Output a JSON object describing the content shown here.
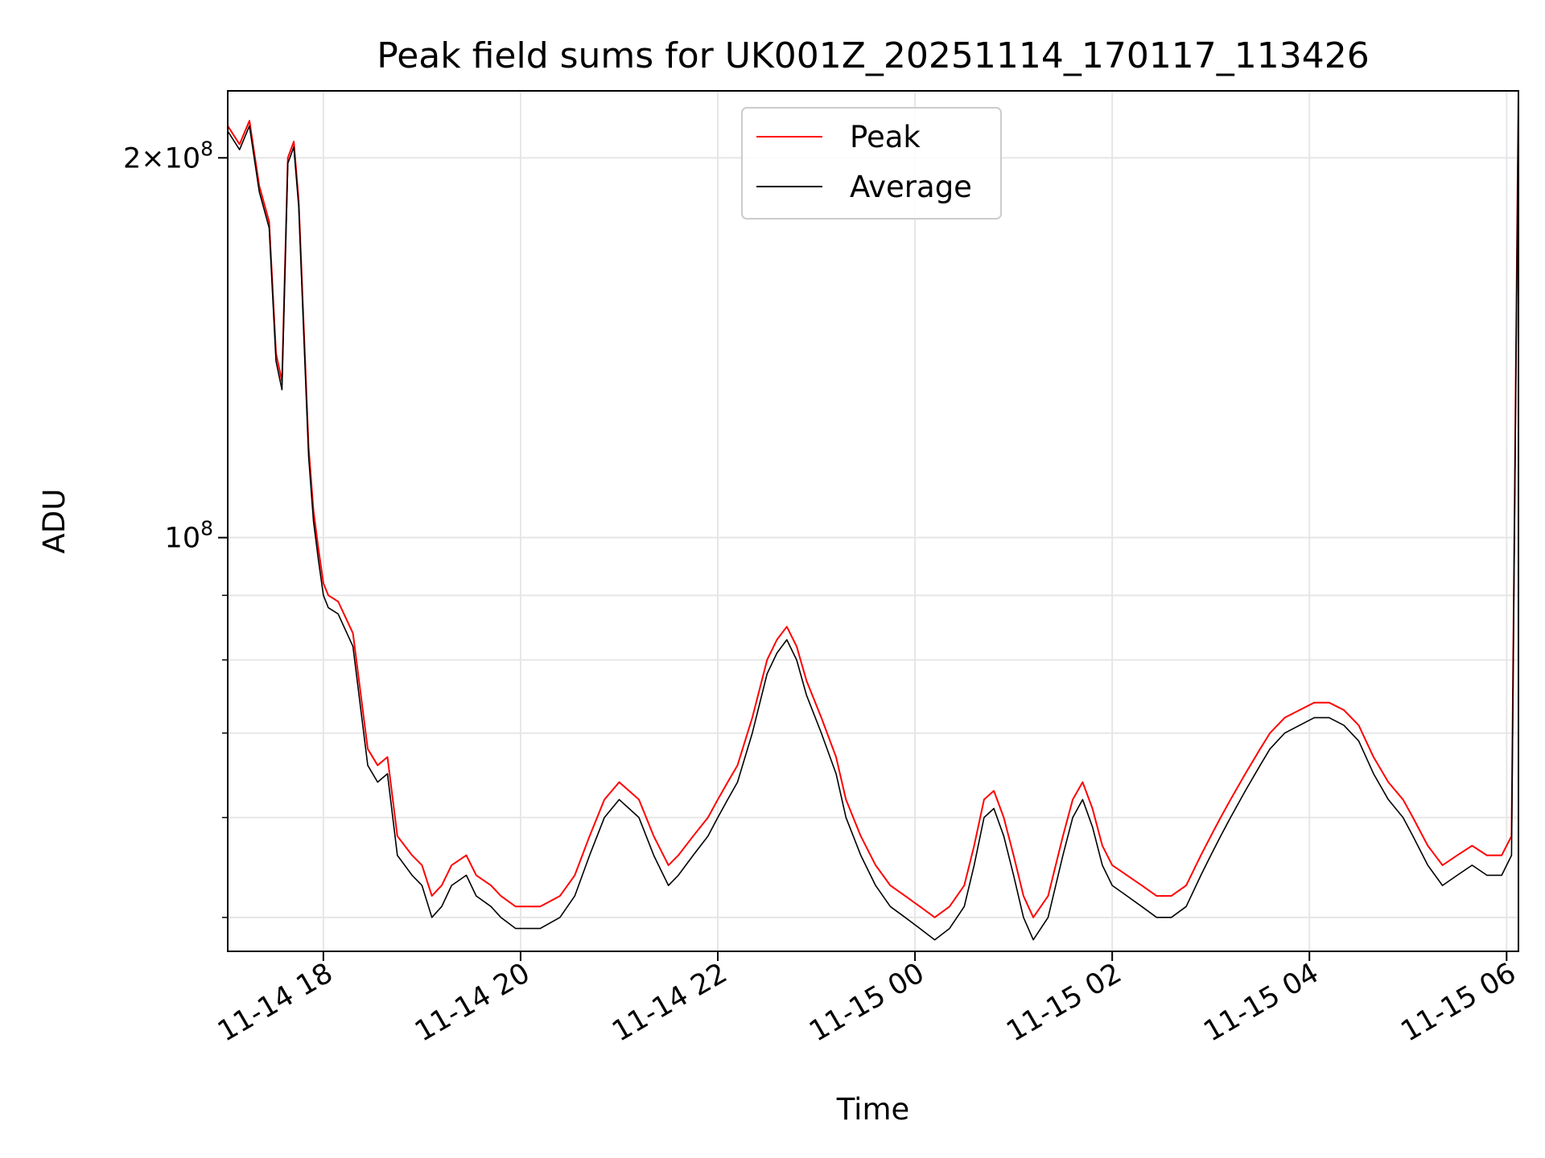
{
  "chart_data": {
    "type": "line",
    "title": "Peak field sums for UK001Z_20251114_170117_113426",
    "xlabel": "Time",
    "ylabel": "ADU",
    "yscale": "log",
    "ylim": [
      47000000,
      226000000
    ],
    "xlim_hours": [
      -0.97,
      12.12
    ],
    "grid": true,
    "legend_position": "top-center",
    "x_tick_labels": [
      "11-14 18",
      "11-14 20",
      "11-14 22",
      "11-15 00",
      "11-15 02",
      "11-15 04",
      "11-15 06"
    ],
    "x_tick_hours": [
      0,
      2,
      4,
      6,
      8,
      10,
      12
    ],
    "y_major_ticks": [
      {
        "value": 100000000,
        "base": "10",
        "exp": "8",
        "coef": ""
      },
      {
        "value": 200000000,
        "base": "10",
        "exp": "8",
        "coef": "2×"
      }
    ],
    "y_minor_ticks": [
      50000000,
      60000000,
      70000000,
      80000000,
      90000000
    ],
    "x_unit_note": "hours since 2025-11-14 18:00",
    "series": [
      {
        "name": "Peak",
        "color": "#ff0000",
        "points": [
          [
            -0.97,
            212
          ],
          [
            -0.85,
            205
          ],
          [
            -0.75,
            214
          ],
          [
            -0.65,
            190
          ],
          [
            -0.55,
            178
          ],
          [
            -0.48,
            140
          ],
          [
            -0.42,
            133
          ],
          [
            -0.36,
            200
          ],
          [
            -0.3,
            206
          ],
          [
            -0.25,
            185
          ],
          [
            -0.15,
            118
          ],
          [
            -0.1,
            105
          ],
          [
            -0.05,
            98
          ],
          [
            0.0,
            92
          ],
          [
            0.05,
            90
          ],
          [
            0.15,
            89
          ],
          [
            0.3,
            84
          ],
          [
            0.45,
            68
          ],
          [
            0.55,
            66
          ],
          [
            0.65,
            67
          ],
          [
            0.75,
            58
          ],
          [
            0.9,
            56
          ],
          [
            1.0,
            55
          ],
          [
            1.1,
            52
          ],
          [
            1.2,
            53
          ],
          [
            1.3,
            55
          ],
          [
            1.45,
            56
          ],
          [
            1.55,
            54
          ],
          [
            1.7,
            53
          ],
          [
            1.8,
            52
          ],
          [
            1.95,
            51
          ],
          [
            2.05,
            51
          ],
          [
            2.2,
            51
          ],
          [
            2.4,
            52
          ],
          [
            2.55,
            54
          ],
          [
            2.7,
            58
          ],
          [
            2.85,
            62
          ],
          [
            3.0,
            64
          ],
          [
            3.1,
            63
          ],
          [
            3.2,
            62
          ],
          [
            3.35,
            58
          ],
          [
            3.5,
            55
          ],
          [
            3.6,
            56
          ],
          [
            3.75,
            58
          ],
          [
            3.9,
            60
          ],
          [
            4.0,
            62
          ],
          [
            4.1,
            64
          ],
          [
            4.2,
            66
          ],
          [
            4.35,
            72
          ],
          [
            4.5,
            80
          ],
          [
            4.6,
            83
          ],
          [
            4.7,
            85
          ],
          [
            4.8,
            82
          ],
          [
            4.9,
            77
          ],
          [
            5.05,
            72
          ],
          [
            5.2,
            67
          ],
          [
            5.3,
            62
          ],
          [
            5.45,
            58
          ],
          [
            5.6,
            55
          ],
          [
            5.75,
            53
          ],
          [
            5.9,
            52
          ],
          [
            6.05,
            51
          ],
          [
            6.2,
            50
          ],
          [
            6.35,
            51
          ],
          [
            6.5,
            53
          ],
          [
            6.6,
            57
          ],
          [
            6.7,
            62
          ],
          [
            6.8,
            63
          ],
          [
            6.9,
            60
          ],
          [
            7.0,
            56
          ],
          [
            7.1,
            52
          ],
          [
            7.2,
            50
          ],
          [
            7.35,
            52
          ],
          [
            7.5,
            58
          ],
          [
            7.6,
            62
          ],
          [
            7.7,
            64
          ],
          [
            7.8,
            61
          ],
          [
            7.9,
            57
          ],
          [
            8.0,
            55
          ],
          [
            8.15,
            54
          ],
          [
            8.3,
            53
          ],
          [
            8.45,
            52
          ],
          [
            8.6,
            52
          ],
          [
            8.75,
            53
          ],
          [
            8.9,
            56
          ],
          [
            9.0,
            58
          ],
          [
            9.1,
            60
          ],
          [
            9.2,
            62
          ],
          [
            9.35,
            65
          ],
          [
            9.5,
            68
          ],
          [
            9.6,
            70
          ],
          [
            9.75,
            72
          ],
          [
            9.9,
            73
          ],
          [
            10.05,
            74
          ],
          [
            10.2,
            74
          ],
          [
            10.35,
            73
          ],
          [
            10.5,
            71
          ],
          [
            10.65,
            67
          ],
          [
            10.8,
            64
          ],
          [
            10.95,
            62
          ],
          [
            11.05,
            60
          ],
          [
            11.2,
            57
          ],
          [
            11.35,
            55
          ],
          [
            11.5,
            56
          ],
          [
            11.65,
            57
          ],
          [
            11.8,
            56
          ],
          [
            11.95,
            56
          ],
          [
            12.05,
            58
          ],
          [
            12.12,
            226
          ]
        ]
      },
      {
        "name": "Average",
        "color": "#000000",
        "points": [
          [
            -0.97,
            210
          ],
          [
            -0.85,
            203
          ],
          [
            -0.75,
            212
          ],
          [
            -0.65,
            188
          ],
          [
            -0.55,
            176
          ],
          [
            -0.48,
            138
          ],
          [
            -0.42,
            131
          ],
          [
            -0.36,
            198
          ],
          [
            -0.3,
            204
          ],
          [
            -0.25,
            183
          ],
          [
            -0.15,
            116
          ],
          [
            -0.1,
            103
          ],
          [
            -0.05,
            96
          ],
          [
            0.0,
            90
          ],
          [
            0.05,
            88
          ],
          [
            0.15,
            87
          ],
          [
            0.3,
            82
          ],
          [
            0.45,
            66
          ],
          [
            0.55,
            64
          ],
          [
            0.65,
            65
          ],
          [
            0.75,
            56
          ],
          [
            0.9,
            54
          ],
          [
            1.0,
            53
          ],
          [
            1.1,
            50
          ],
          [
            1.2,
            51
          ],
          [
            1.3,
            53
          ],
          [
            1.45,
            54
          ],
          [
            1.55,
            52
          ],
          [
            1.7,
            51
          ],
          [
            1.8,
            50
          ],
          [
            1.95,
            49
          ],
          [
            2.05,
            49
          ],
          [
            2.2,
            49
          ],
          [
            2.4,
            50
          ],
          [
            2.55,
            52
          ],
          [
            2.7,
            56
          ],
          [
            2.85,
            60
          ],
          [
            3.0,
            62
          ],
          [
            3.1,
            61
          ],
          [
            3.2,
            60
          ],
          [
            3.35,
            56
          ],
          [
            3.5,
            53
          ],
          [
            3.6,
            54
          ],
          [
            3.75,
            56
          ],
          [
            3.9,
            58
          ],
          [
            4.0,
            60
          ],
          [
            4.1,
            62
          ],
          [
            4.2,
            64
          ],
          [
            4.35,
            70
          ],
          [
            4.5,
            78
          ],
          [
            4.6,
            81
          ],
          [
            4.7,
            83
          ],
          [
            4.8,
            80
          ],
          [
            4.9,
            75
          ],
          [
            5.05,
            70
          ],
          [
            5.2,
            65
          ],
          [
            5.3,
            60
          ],
          [
            5.45,
            56
          ],
          [
            5.6,
            53
          ],
          [
            5.75,
            51
          ],
          [
            5.9,
            50
          ],
          [
            6.05,
            49
          ],
          [
            6.2,
            48
          ],
          [
            6.35,
            49
          ],
          [
            6.5,
            51
          ],
          [
            6.6,
            55
          ],
          [
            6.7,
            60
          ],
          [
            6.8,
            61
          ],
          [
            6.9,
            58
          ],
          [
            7.0,
            54
          ],
          [
            7.1,
            50
          ],
          [
            7.2,
            48
          ],
          [
            7.35,
            50
          ],
          [
            7.5,
            56
          ],
          [
            7.6,
            60
          ],
          [
            7.7,
            62
          ],
          [
            7.8,
            59
          ],
          [
            7.9,
            55
          ],
          [
            8.0,
            53
          ],
          [
            8.15,
            52
          ],
          [
            8.3,
            51
          ],
          [
            8.45,
            50
          ],
          [
            8.6,
            50
          ],
          [
            8.75,
            51
          ],
          [
            8.9,
            54
          ],
          [
            9.0,
            56
          ],
          [
            9.1,
            58
          ],
          [
            9.2,
            60
          ],
          [
            9.35,
            63
          ],
          [
            9.5,
            66
          ],
          [
            9.6,
            68
          ],
          [
            9.75,
            70
          ],
          [
            9.9,
            71
          ],
          [
            10.05,
            72
          ],
          [
            10.2,
            72
          ],
          [
            10.35,
            71
          ],
          [
            10.5,
            69
          ],
          [
            10.65,
            65
          ],
          [
            10.8,
            62
          ],
          [
            10.95,
            60
          ],
          [
            11.05,
            58
          ],
          [
            11.2,
            55
          ],
          [
            11.35,
            53
          ],
          [
            11.5,
            54
          ],
          [
            11.65,
            55
          ],
          [
            11.8,
            54
          ],
          [
            11.95,
            54
          ],
          [
            12.05,
            56
          ],
          [
            12.12,
            224
          ]
        ]
      }
    ],
    "value_unit_note": "series point values in millions of ADU"
  }
}
